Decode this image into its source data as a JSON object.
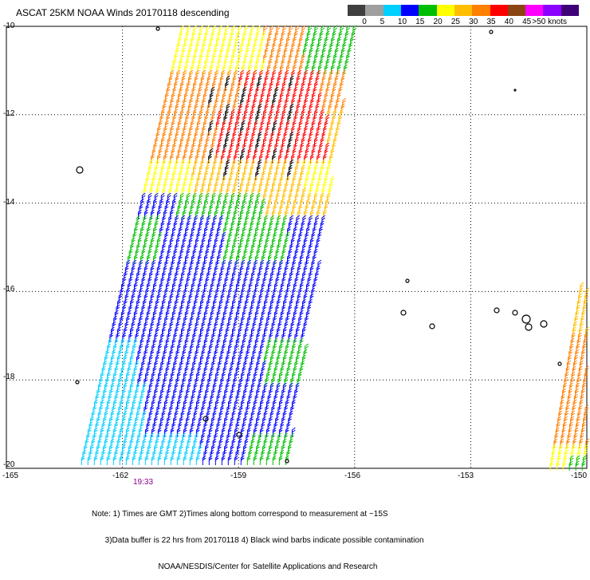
{
  "title": "ASCAT 25KM NOAA Winds 20170118 descending",
  "scale": {
    "colors": [
      "#3f3f3f",
      "#9f9f9f",
      "#00cfff",
      "#0000ff",
      "#00bf00",
      "#ffff00",
      "#ffbf00",
      "#ff7f00",
      "#ff0000",
      "#8b4513",
      "#ff00ff",
      "#8b00ff",
      "#3f0077"
    ],
    "labels": [
      "0",
      "5",
      "10",
      "15",
      "20",
      "25",
      "30",
      "35",
      "40",
      "45",
      ">50 knots"
    ]
  },
  "axes": {
    "x_ticks": [
      "-165",
      "-162",
      "-159",
      "-156",
      "-153",
      "-150"
    ],
    "y_ticks": [
      "-10",
      "-12",
      "-14",
      "-16",
      "-18",
      "-20"
    ],
    "xlim": [
      -165,
      -150
    ],
    "ylim": [
      -20,
      -10
    ]
  },
  "time_label": "19:33",
  "note_lines": [
    "Note: 1) Times are GMT 2)Times along bottom correspond to measurement at ~15S",
    "      3)Data buffer is 22 hrs from 20170118 4) Black wind barbs indicate possible contamination",
    "                              NOAA/NESDIS/Center for Satellite Applications and Research"
  ]
}
